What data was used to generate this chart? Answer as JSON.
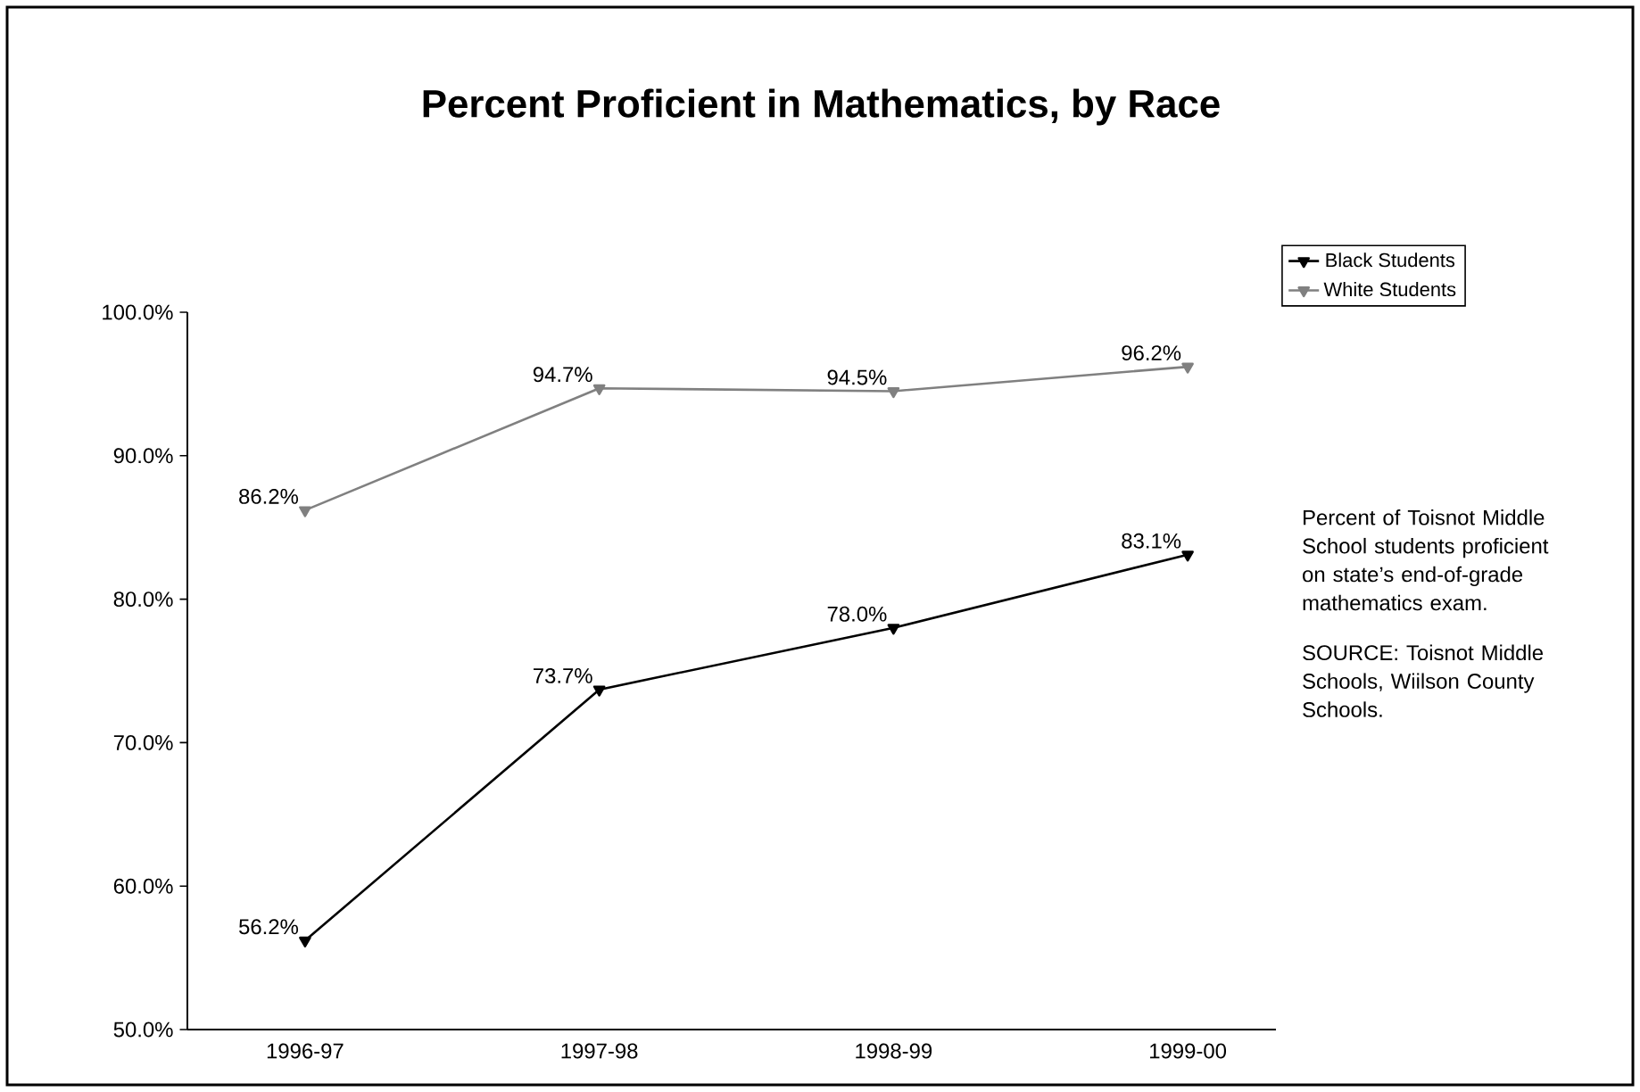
{
  "chart_data": {
    "type": "line",
    "title": "Percent Proficient in Mathematics, by Race",
    "categories": [
      "1996-97",
      "1997-98",
      "1998-99",
      "1999-00"
    ],
    "series": [
      {
        "name": "Black Students",
        "color": "#000000",
        "values": [
          56.2,
          73.7,
          78.0,
          83.1
        ],
        "value_labels": [
          "56.2%",
          "73.7%",
          "78.0%",
          "83.1%"
        ]
      },
      {
        "name": "White Students",
        "color": "#808080",
        "values": [
          86.2,
          94.7,
          94.5,
          96.2
        ],
        "value_labels": [
          "86.2%",
          "94.7%",
          "94.5%",
          "96.2%"
        ]
      }
    ],
    "ylim": [
      50,
      100
    ],
    "yticks": [
      {
        "value": 50,
        "label": "50.0%"
      },
      {
        "value": 60,
        "label": "60.0%"
      },
      {
        "value": 70,
        "label": "70.0%"
      },
      {
        "value": 80,
        "label": "80.0%"
      },
      {
        "value": 90,
        "label": "90.0%"
      },
      {
        "value": 100,
        "label": "100.0%"
      }
    ],
    "grid": false,
    "legend": "top right",
    "marker": "triangle",
    "line_style": "solid",
    "annotations": [
      "Percent of Toisnot Middle School students proficient on state’s end-of-grade mathematics exam.",
      "SOURCE: Toisnot Middle Schools, Wiilson County Schools."
    ]
  }
}
